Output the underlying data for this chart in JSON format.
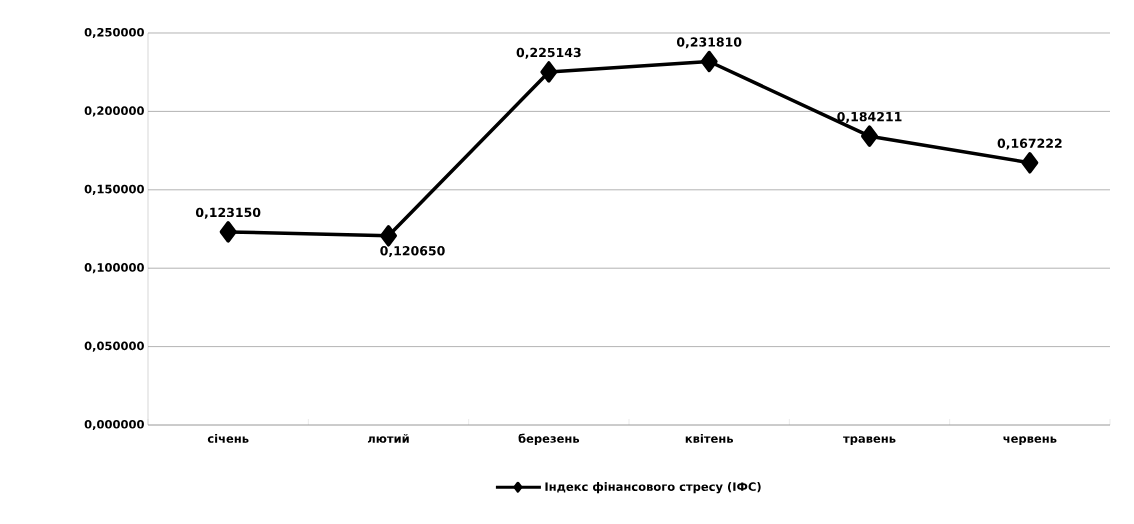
{
  "chart_data": {
    "type": "line",
    "categories": [
      "січень",
      "лютий",
      "березень",
      "квітень",
      "травень",
      "червень"
    ],
    "series": [
      {
        "name": "Індекс фінансового стресу (ІФС)",
        "color": "#000000",
        "values": [
          0.12315,
          0.12065,
          0.225143,
          0.23181,
          0.184211,
          0.167222
        ],
        "value_labels": [
          "0,123150",
          "0,120650",
          "0,225143",
          "0,231810",
          "0,184211",
          "0,167222"
        ]
      }
    ],
    "ylim": [
      0,
      0.25
    ],
    "yticks": [
      {
        "value": 0,
        "label": "0,000000"
      },
      {
        "value": 0.05,
        "label": "0,050000"
      },
      {
        "value": 0.1,
        "label": "0,100000"
      },
      {
        "value": 0.15,
        "label": "0,150000"
      },
      {
        "value": 0.2,
        "label": "0,200000"
      },
      {
        "value": 0.25,
        "label": "0,250000"
      }
    ],
    "grid": "y",
    "legend": "bottom",
    "marker": "diamond",
    "line_style": "solid"
  }
}
